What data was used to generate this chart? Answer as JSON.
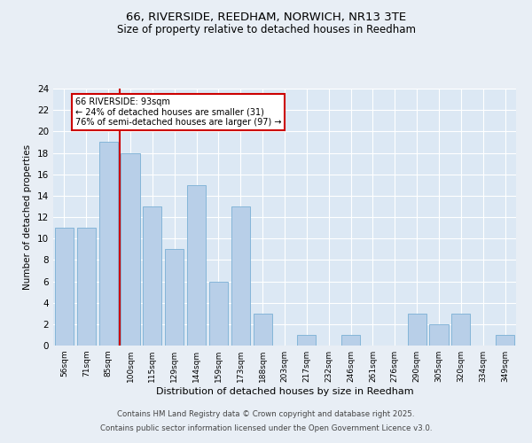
{
  "title": "66, RIVERSIDE, REEDHAM, NORWICH, NR13 3TE",
  "subtitle": "Size of property relative to detached houses in Reedham",
  "xlabel": "Distribution of detached houses by size in Reedham",
  "ylabel": "Number of detached properties",
  "categories": [
    "56sqm",
    "71sqm",
    "85sqm",
    "100sqm",
    "115sqm",
    "129sqm",
    "144sqm",
    "159sqm",
    "173sqm",
    "188sqm",
    "203sqm",
    "217sqm",
    "232sqm",
    "246sqm",
    "261sqm",
    "276sqm",
    "290sqm",
    "305sqm",
    "320sqm",
    "334sqm",
    "349sqm"
  ],
  "values": [
    11,
    11,
    19,
    18,
    13,
    9,
    15,
    6,
    13,
    3,
    0,
    1,
    0,
    1,
    0,
    0,
    3,
    2,
    3,
    0,
    1
  ],
  "bar_color": "#b8cfe8",
  "bar_edge_color": "#7aafd4",
  "vline_x": 2.5,
  "vline_color": "#cc0000",
  "annotation_title": "66 RIVERSIDE: 93sqm",
  "annotation_line1": "← 24% of detached houses are smaller (31)",
  "annotation_line2": "76% of semi-detached houses are larger (97) →",
  "annotation_box_color": "#cc0000",
  "ylim": [
    0,
    24
  ],
  "yticks": [
    0,
    2,
    4,
    6,
    8,
    10,
    12,
    14,
    16,
    18,
    20,
    22,
    24
  ],
  "footnote1": "Contains HM Land Registry data © Crown copyright and database right 2025.",
  "footnote2": "Contains public sector information licensed under the Open Government Licence v3.0.",
  "bg_color": "#e8eef5",
  "plot_bg_color": "#dce8f4"
}
